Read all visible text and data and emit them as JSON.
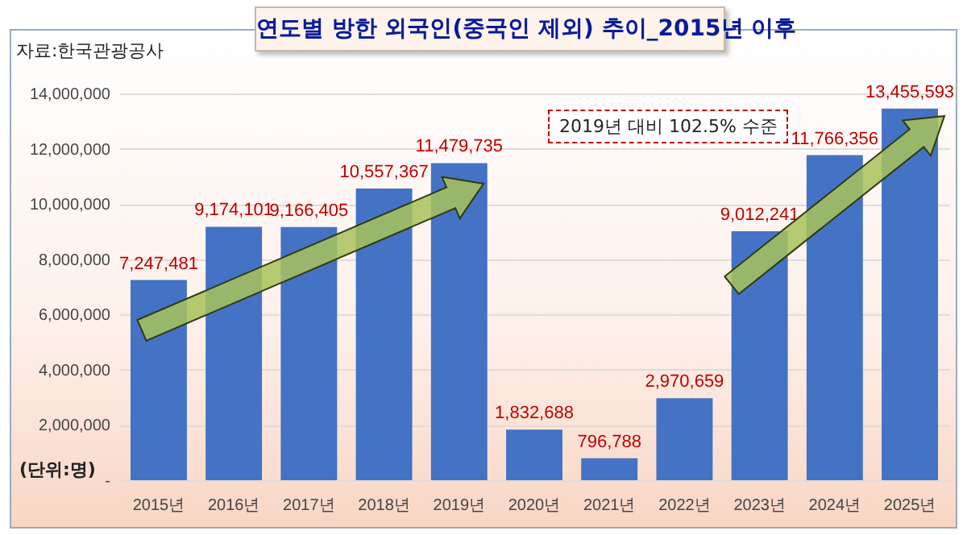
{
  "chart_data": {
    "type": "bar",
    "title": "연도별 방한 외국인(중국인 제외) 추이_2015년 이후",
    "annotations": [
      "자료:한국관광공사",
      "(단위:명)",
      "2019년 대비 102.5% 수준"
    ],
    "categories": [
      "2015년",
      "2016년",
      "2017년",
      "2018년",
      "2019년",
      "2020년",
      "2021년",
      "2022년",
      "2023년",
      "2024년",
      "2025년"
    ],
    "values": [
      7247481,
      9174101,
      9166405,
      10557367,
      11479735,
      1832688,
      796788,
      2970659,
      9012241,
      11766356,
      13455593
    ],
    "value_labels": [
      "7,247,481",
      "9,174,101",
      "9,166,405",
      "10,557,367",
      "11,479,735",
      "1,832,688",
      "796,788",
      "2,970,659",
      "9,012,241",
      "11,766,356",
      "13,455,593"
    ],
    "color": "#4472c4",
    "ylim": [
      0,
      14000000
    ],
    "yticks": [
      {
        "value": 0,
        "label": "-"
      },
      {
        "value": 2000000,
        "label": "2,000,000"
      },
      {
        "value": 4000000,
        "label": "4,000,000"
      },
      {
        "value": 6000000,
        "label": "6,000,000"
      },
      {
        "value": 8000000,
        "label": "8,000,000"
      },
      {
        "value": 10000000,
        "label": "10,000,000"
      },
      {
        "value": 12000000,
        "label": "12,000,000"
      },
      {
        "value": 14000000,
        "label": "14,000,000"
      }
    ],
    "grid": "y"
  }
}
